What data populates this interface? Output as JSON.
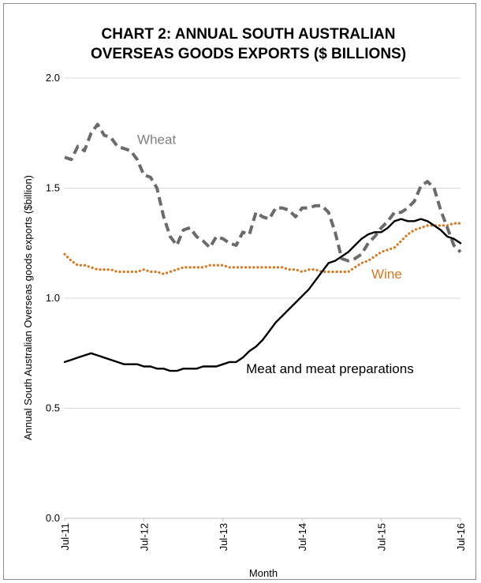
{
  "chart_data": {
    "type": "line",
    "title_lines": [
      "CHART 2: ANNUAL SOUTH AUSTRALIAN",
      "OVERSEAS GOODS EXPORTS ($ BILLIONS)"
    ],
    "xlabel": "Month",
    "ylabel": "Annual South Australian Overseas  goods exports ($billion)",
    "ylim": [
      0,
      2.0
    ],
    "ytick_labels": [
      "0.0",
      "0.5",
      "1.0",
      "1.5",
      "2.0"
    ],
    "ytick_values": [
      0,
      0.5,
      1.0,
      1.5,
      2.0
    ],
    "xtick_labels": [
      "Jul-11",
      "Jul-12",
      "Jul-13",
      "Jul-14",
      "Jul-15",
      "Jul-16"
    ],
    "xtick_months": [
      0,
      12,
      24,
      36,
      48,
      60
    ],
    "grid": true,
    "colors": {
      "wheat": "#6b6b6b",
      "wine": "#d9771e",
      "meat": "#000000",
      "grid": "#d9d9d9"
    },
    "series": [
      {
        "name": "Wheat",
        "label_color": "#7f7f7f",
        "style": "dashed",
        "x": [
          0,
          1,
          2,
          3,
          4,
          5,
          6,
          7,
          8,
          9,
          10,
          11,
          12,
          13,
          14,
          15,
          16,
          17,
          18,
          19,
          20,
          21,
          22,
          23,
          24,
          25,
          26,
          27,
          28,
          29,
          30,
          31,
          32,
          33,
          34,
          35,
          36,
          37,
          38,
          39,
          40,
          41,
          42,
          43,
          44,
          45,
          46,
          47,
          48,
          49,
          50,
          51,
          52,
          53,
          54,
          55,
          56,
          57,
          58,
          59,
          60
        ],
        "values": [
          1.64,
          1.63,
          1.69,
          1.67,
          1.75,
          1.79,
          1.74,
          1.73,
          1.69,
          1.68,
          1.67,
          1.63,
          1.56,
          1.55,
          1.5,
          1.37,
          1.28,
          1.24,
          1.31,
          1.32,
          1.28,
          1.26,
          1.23,
          1.28,
          1.27,
          1.25,
          1.24,
          1.3,
          1.29,
          1.39,
          1.37,
          1.36,
          1.41,
          1.41,
          1.4,
          1.37,
          1.41,
          1.41,
          1.42,
          1.42,
          1.39,
          1.3,
          1.18,
          1.17,
          1.18,
          1.2,
          1.25,
          1.28,
          1.32,
          1.35,
          1.39,
          1.39,
          1.41,
          1.44,
          1.51,
          1.53,
          1.5,
          1.4,
          1.32,
          1.24,
          1.21
        ]
      },
      {
        "name": "Wine",
        "label_color": "#d9771e",
        "style": "dotted",
        "x": [
          0,
          1,
          2,
          3,
          4,
          5,
          6,
          7,
          8,
          9,
          10,
          11,
          12,
          13,
          14,
          15,
          16,
          17,
          18,
          19,
          20,
          21,
          22,
          23,
          24,
          25,
          26,
          27,
          28,
          29,
          30,
          31,
          32,
          33,
          34,
          35,
          36,
          37,
          38,
          39,
          40,
          41,
          42,
          43,
          44,
          45,
          46,
          47,
          48,
          49,
          50,
          51,
          52,
          53,
          54,
          55,
          56,
          57,
          58,
          59,
          60
        ],
        "values": [
          1.2,
          1.17,
          1.15,
          1.15,
          1.14,
          1.13,
          1.13,
          1.13,
          1.12,
          1.12,
          1.12,
          1.12,
          1.13,
          1.12,
          1.12,
          1.11,
          1.12,
          1.13,
          1.14,
          1.14,
          1.14,
          1.14,
          1.15,
          1.15,
          1.15,
          1.14,
          1.14,
          1.14,
          1.14,
          1.14,
          1.14,
          1.14,
          1.14,
          1.14,
          1.13,
          1.13,
          1.12,
          1.13,
          1.13,
          1.12,
          1.12,
          1.12,
          1.12,
          1.12,
          1.14,
          1.16,
          1.17,
          1.19,
          1.21,
          1.22,
          1.23,
          1.26,
          1.29,
          1.31,
          1.32,
          1.33,
          1.33,
          1.33,
          1.33,
          1.34,
          1.34
        ]
      },
      {
        "name": "Meat and meat preparations",
        "label_color": "#000000",
        "style": "solid",
        "x": [
          0,
          1,
          2,
          3,
          4,
          5,
          6,
          7,
          8,
          9,
          10,
          11,
          12,
          13,
          14,
          15,
          16,
          17,
          18,
          19,
          20,
          21,
          22,
          23,
          24,
          25,
          26,
          27,
          28,
          29,
          30,
          31,
          32,
          33,
          34,
          35,
          36,
          37,
          38,
          39,
          40,
          41,
          42,
          43,
          44,
          45,
          46,
          47,
          48,
          49,
          50,
          51,
          52,
          53,
          54,
          55,
          56,
          57,
          58,
          59,
          60
        ],
        "values": [
          0.71,
          0.72,
          0.73,
          0.74,
          0.75,
          0.74,
          0.73,
          0.72,
          0.71,
          0.7,
          0.7,
          0.7,
          0.69,
          0.69,
          0.68,
          0.68,
          0.67,
          0.67,
          0.68,
          0.68,
          0.68,
          0.69,
          0.69,
          0.69,
          0.7,
          0.71,
          0.71,
          0.73,
          0.76,
          0.78,
          0.81,
          0.85,
          0.89,
          0.92,
          0.95,
          0.98,
          1.01,
          1.04,
          1.08,
          1.12,
          1.16,
          1.17,
          1.19,
          1.21,
          1.24,
          1.27,
          1.29,
          1.3,
          1.3,
          1.32,
          1.35,
          1.36,
          1.35,
          1.35,
          1.36,
          1.35,
          1.33,
          1.31,
          1.28,
          1.27,
          1.25
        ]
      }
    ],
    "annotations": [
      {
        "series": "Wheat",
        "text": "Wheat",
        "x_month": 11,
        "y": 1.7
      },
      {
        "series": "Wine",
        "text": "Wine",
        "x_month": 46.5,
        "y": 1.09
      },
      {
        "series": "Meat and meat preparations",
        "text": "Meat and meat preparations",
        "x_month": 27.5,
        "y": 0.66
      }
    ]
  }
}
